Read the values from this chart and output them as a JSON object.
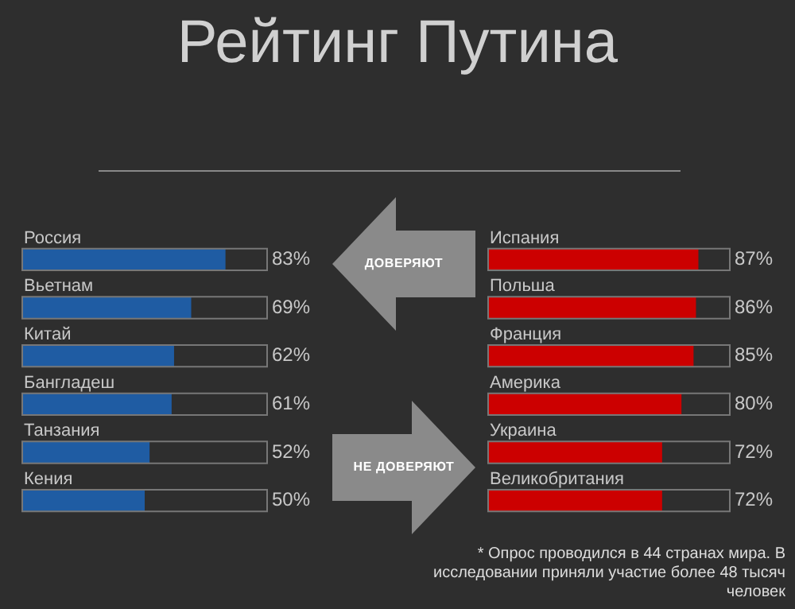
{
  "chart_data": [
    {
      "type": "bar",
      "title": "Рейтинг Путина",
      "orientation": "horizontal",
      "categories": [
        "Россия",
        "Вьетнам",
        "Китай",
        "Бангладеш",
        "Танзания",
        "Кения"
      ],
      "values": [
        83,
        69,
        62,
        61,
        52,
        50
      ],
      "value_labels": [
        "83%",
        "69%",
        "62%",
        "61%",
        "52%",
        "50%"
      ],
      "color": "#1f5ca3",
      "xlim": [
        0,
        100
      ],
      "tick_labels": false,
      "annotations": [
        "ДОВЕРЯЮТ"
      ]
    },
    {
      "type": "bar",
      "orientation": "horizontal",
      "categories": [
        "Испания",
        "Польша",
        "Франция",
        "Америка",
        "Украина",
        "Великобритания"
      ],
      "values": [
        87,
        86,
        85,
        80,
        72,
        72
      ],
      "value_labels": [
        "87%",
        "86%",
        "85%",
        "80%",
        "72%",
        "72%"
      ],
      "color": "#cc0000",
      "xlim": [
        0,
        100
      ],
      "tick_labels": false,
      "annotations": [
        "НЕ ДОВЕРЯЮТ",
        "* Опрос проводился в 44 странах мира. В исследовании приняли участие более 48 тысяч человек"
      ]
    }
  ]
}
